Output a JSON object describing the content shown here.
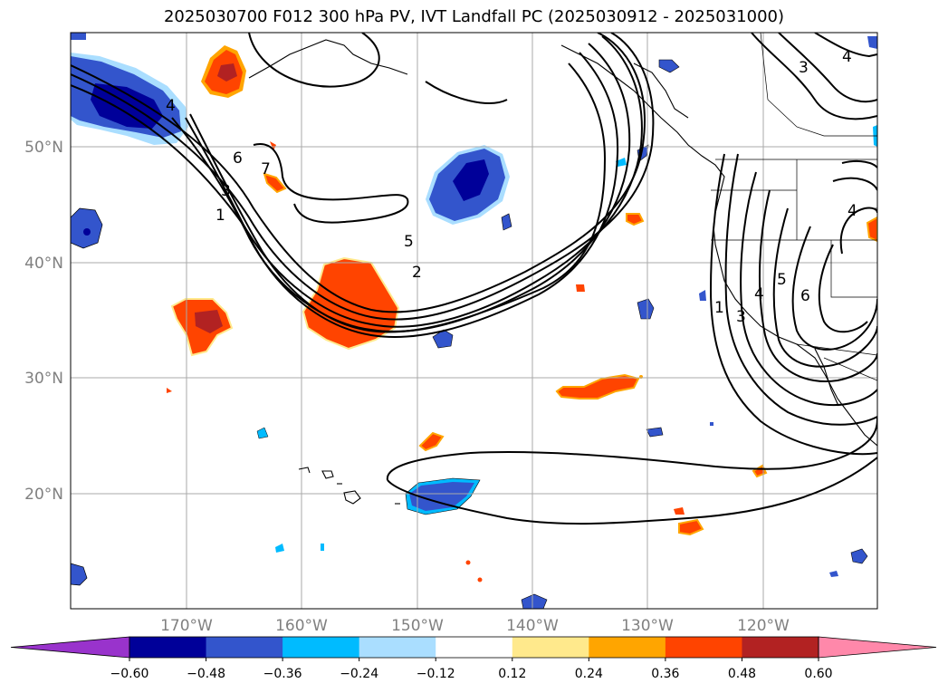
{
  "title": "2025030700 F012 300 hPa PV, IVT Landfall PC (2025030912 - 2025031000)",
  "lat_labels": [
    "50°N",
    "40°N",
    "30°N",
    "20°N"
  ],
  "lon_labels": [
    "170°W",
    "160°W",
    "150°W",
    "140°W",
    "130°W",
    "120°W"
  ],
  "contour_labels": [
    "4",
    "6",
    "7",
    "3",
    "1",
    "5",
    "2",
    "1",
    "4",
    "5",
    "6",
    "3",
    "4",
    "3",
    "4"
  ],
  "colorbar": {
    "ticks": [
      "−0.60",
      "−0.48",
      "−0.36",
      "−0.24",
      "−0.12",
      "0.12",
      "0.24",
      "0.36",
      "0.48",
      "0.60"
    ],
    "colors": {
      "under": "#9933cc",
      "neg_060_048": "#000099",
      "neg_048_036": "#3355cc",
      "neg_036_024": "#00bbff",
      "neg_024_012": "#aadeff",
      "neutral": "#ffffff",
      "pos_012_024": "#ffe98c",
      "pos_024_036": "#ffa500",
      "pos_036_048": "#ff4400",
      "pos_048_060": "#b22222",
      "over": "#ff88aa"
    }
  }
}
